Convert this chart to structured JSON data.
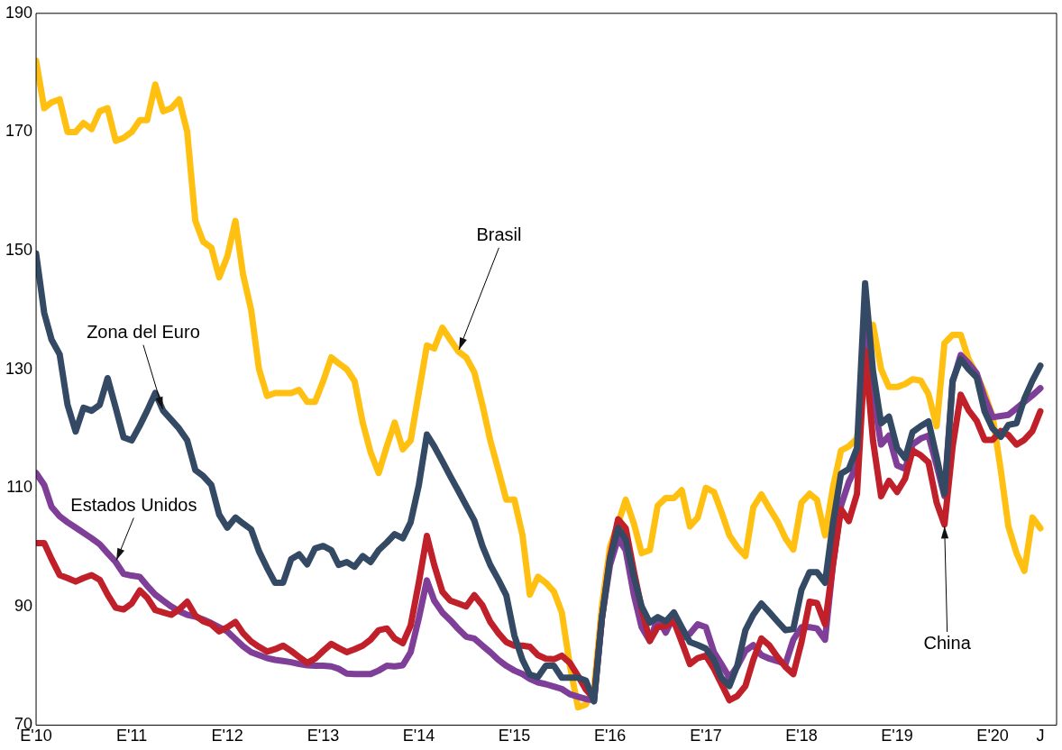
{
  "chart_data": {
    "type": "line",
    "x": [
      "2010-01",
      "2010-02",
      "2010-03",
      "2010-04",
      "2010-05",
      "2010-06",
      "2010-07",
      "2010-08",
      "2010-09",
      "2010-10",
      "2010-11",
      "2010-12",
      "2011-01",
      "2011-02",
      "2011-03",
      "2011-04",
      "2011-05",
      "2011-06",
      "2011-07",
      "2011-08",
      "2011-09",
      "2011-10",
      "2011-11",
      "2011-12",
      "2012-01",
      "2012-02",
      "2012-03",
      "2012-04",
      "2012-05",
      "2012-06",
      "2012-07",
      "2012-08",
      "2012-09",
      "2012-10",
      "2012-11",
      "2012-12",
      "2013-01",
      "2013-02",
      "2013-03",
      "2013-04",
      "2013-05",
      "2013-06",
      "2013-07",
      "2013-08",
      "2013-09",
      "2013-10",
      "2013-11",
      "2013-12",
      "2014-01",
      "2014-02",
      "2014-03",
      "2014-04",
      "2014-05",
      "2014-06",
      "2014-07",
      "2014-08",
      "2014-09",
      "2014-10",
      "2014-11",
      "2014-12",
      "2015-01",
      "2015-02",
      "2015-03",
      "2015-04",
      "2015-05",
      "2015-06",
      "2015-07",
      "2015-08",
      "2015-09",
      "2015-10",
      "2015-11",
      "2015-12",
      "2016-01",
      "2016-02",
      "2016-03",
      "2016-04",
      "2016-05",
      "2016-06",
      "2016-07",
      "2016-08",
      "2016-09",
      "2016-10",
      "2016-11",
      "2016-12",
      "2017-01",
      "2017-02",
      "2017-03",
      "2017-04",
      "2017-05",
      "2017-06",
      "2017-07",
      "2017-08",
      "2017-09",
      "2017-10",
      "2017-11",
      "2017-12",
      "2018-01",
      "2018-02",
      "2018-03",
      "2018-04",
      "2018-05",
      "2018-06",
      "2018-07",
      "2018-08",
      "2018-09",
      "2018-10",
      "2018-11",
      "2018-12",
      "2019-01",
      "2019-02",
      "2019-03",
      "2019-04",
      "2019-05",
      "2019-06",
      "2019-07",
      "2019-08",
      "2019-09",
      "2019-10",
      "2019-11",
      "2019-12",
      "2020-01",
      "2020-02",
      "2020-03",
      "2020-04",
      "2020-05",
      "2020-06",
      "2020-07"
    ],
    "series": [
      {
        "color": "#ffc012",
        "values": [
          182,
          174,
          175,
          175.5,
          170,
          170,
          171.5,
          170.5,
          173.5,
          174,
          168.5,
          169,
          170,
          172,
          172,
          178,
          173.5,
          174,
          175.5,
          170,
          155,
          151.5,
          150.5,
          145.5,
          149,
          155,
          146,
          140,
          130,
          125.5,
          126,
          126,
          126,
          126.5,
          124.5,
          124.5,
          128,
          132,
          131,
          130,
          128,
          121,
          116,
          112.5,
          117,
          121,
          116.5,
          118,
          126,
          134,
          133.5,
          137,
          135,
          133,
          132,
          129.5,
          124,
          118,
          113,
          108,
          108,
          102,
          92,
          95,
          94,
          92.5,
          89,
          80,
          73,
          73.5,
          76,
          90,
          100,
          104,
          108,
          104,
          99,
          99.5,
          107,
          108.3,
          108.3,
          109.6,
          103.5,
          105,
          110,
          109.3,
          106,
          102,
          100,
          98.5,
          106.7,
          108.9,
          106.5,
          104.4,
          101.5,
          99.6,
          107.5,
          109,
          108,
          102,
          110,
          116.3,
          117,
          118.3,
          null,
          137.5,
          130,
          127,
          127,
          127.5,
          128.3,
          128.1,
          125.8,
          120.4,
          134.4,
          135.8,
          135.8,
          131.7,
          129.1,
          126,
          122,
          113,
          103.5,
          99,
          96,
          105,
          103.2
        ]
      },
      {
        "color": "#7f3f98",
        "values": [
          112.5,
          110.5,
          106.8,
          105.2,
          104.2,
          103.3,
          102.4,
          101.5,
          100.5,
          99,
          97.5,
          95.5,
          95.2,
          95,
          93.5,
          92,
          91,
          90,
          89.2,
          88.6,
          88.3,
          87.8,
          87.2,
          86.5,
          85.8,
          84.5,
          83.3,
          82.3,
          81.8,
          81.3,
          81,
          80.8,
          80.6,
          80.3,
          80.1,
          80,
          80,
          79.9,
          79.5,
          78.7,
          78.6,
          78.6,
          78.6,
          79.2,
          80,
          79.9,
          80.1,
          82.3,
          88,
          94.4,
          91,
          89,
          87.7,
          86.2,
          84.9,
          84.6,
          83.4,
          82.3,
          81,
          80,
          79.2,
          78.6,
          77.8,
          77.2,
          76.9,
          76.5,
          76.1,
          75.2,
          74.8,
          74.4,
          74.2,
          88,
          97,
          101.5,
          99.5,
          92,
          86.5,
          84.2,
          88,
          85.6,
          88.4,
          84.6,
          85.4,
          87,
          86.5,
          82.3,
          80.3,
          78,
          79.9,
          82.5,
          83.5,
          81.8,
          81.2,
          80.8,
          80.3,
          84.4,
          86.5,
          86.5,
          86.3,
          84.4,
          97,
          107,
          111,
          113.8,
          137.2,
          126,
          117.3,
          118.8,
          113.8,
          113.2,
          117.3,
          118.3,
          118.8,
          113.8,
          108.6,
          127.8,
          132.4,
          131,
          129.3,
          125.2,
          121.9,
          122.1,
          122.3,
          123.4,
          124.5,
          125.6,
          126.8
        ]
      },
      {
        "color": "#c0202a",
        "values": [
          100.7,
          100.7,
          98,
          95.3,
          94.8,
          94.2,
          94.8,
          95.3,
          94.5,
          92,
          89.8,
          89.5,
          90.5,
          92.7,
          91.5,
          89.4,
          89,
          88.6,
          89.5,
          90.8,
          88.5,
          87.5,
          87,
          85.8,
          86.5,
          87.4,
          85.5,
          84.1,
          83.2,
          82.4,
          82.8,
          83.4,
          82.5,
          81.5,
          80.5,
          81.2,
          82.5,
          83.7,
          83,
          82.3,
          82.8,
          83.4,
          84.4,
          86,
          86.3,
          84.6,
          83.8,
          86.8,
          94,
          101.9,
          97,
          92.5,
          91,
          90.5,
          90,
          91.9,
          90.2,
          87.4,
          85.5,
          84,
          83.4,
          83.4,
          83.2,
          81.8,
          81.2,
          81.1,
          81.7,
          80.5,
          78.3,
          76,
          74.5,
          88,
          98.3,
          104.7,
          103.2,
          96,
          89.6,
          84.2,
          86.5,
          86.7,
          87.5,
          84,
          80.3,
          81.3,
          81.7,
          79.5,
          77,
          74.2,
          74.9,
          76.6,
          81,
          84.6,
          83.4,
          81.5,
          79.8,
          78.6,
          84,
          90.8,
          90.6,
          87,
          97,
          106.4,
          104.4,
          109,
          133.1,
          118,
          108.6,
          111.2,
          109.3,
          111.6,
          116.3,
          115.5,
          114.3,
          107.5,
          103.8,
          116.9,
          125.7,
          123.1,
          121.3,
          118.1,
          118.1,
          119.6,
          118.9,
          117.3,
          118.1,
          119.6,
          122.9
        ]
      },
      {
        "color": "#344a64",
        "values": [
          149.5,
          139.5,
          135,
          132.5,
          124,
          119.5,
          123.5,
          123,
          124,
          128.5,
          123.5,
          118.5,
          118,
          120.5,
          123,
          126,
          123,
          121.5,
          120,
          118,
          113,
          112,
          110.5,
          105.5,
          103.3,
          105,
          104,
          103,
          99.3,
          96.5,
          94,
          94,
          98,
          98.8,
          97.1,
          99.8,
          100.2,
          99.5,
          97,
          97.5,
          96.7,
          98.5,
          97.5,
          99.5,
          100.8,
          102.2,
          101.5,
          104.2,
          110.4,
          119,
          117,
          114.5,
          112,
          109.5,
          107,
          104.5,
          100.2,
          97,
          94.5,
          91.9,
          85.1,
          81,
          78.5,
          78.1,
          80,
          80,
          78,
          78,
          78,
          77.5,
          74,
          88,
          98,
          103.2,
          101.3,
          95,
          90,
          87.3,
          88.2,
          87.5,
          89,
          86.5,
          84,
          83.5,
          82.9,
          81,
          78,
          76.6,
          80,
          86,
          88.6,
          90.5,
          89,
          87.5,
          86,
          86.2,
          92.8,
          95.8,
          95.8,
          94,
          104,
          112.4,
          113.2,
          116.7,
          144.5,
          129.7,
          120.9,
          122,
          116.7,
          115,
          119.4,
          120.4,
          121.2,
          115.2,
          109,
          128.1,
          131.7,
          130,
          128.6,
          122.9,
          120,
          118.6,
          120.6,
          120.9,
          125,
          128.1,
          130.6
        ]
      }
    ],
    "xlim": [
      "2010-01",
      "2020-09"
    ],
    "xticks": [
      {
        "value": "2010-01",
        "label": "E'10"
      },
      {
        "value": "2011-01",
        "label": "E'11"
      },
      {
        "value": "2012-01",
        "label": "E'12"
      },
      {
        "value": "2013-01",
        "label": "E'13"
      },
      {
        "value": "2014-01",
        "label": "E'14"
      },
      {
        "value": "2015-01",
        "label": "E'15"
      },
      {
        "value": "2016-01",
        "label": "E'16"
      },
      {
        "value": "2017-01",
        "label": "E'17"
      },
      {
        "value": "2018-01",
        "label": "E'18"
      },
      {
        "value": "2019-01",
        "label": "E'19"
      },
      {
        "value": "2020-01",
        "label": "E'20"
      },
      {
        "value": "2020-07",
        "label": "J"
      }
    ],
    "ylim": [
      70,
      190
    ],
    "yticks": [
      70,
      90,
      110,
      130,
      150,
      170,
      190
    ],
    "annotations": [
      {
        "text": "Brasil",
        "x": "2014-06",
        "y": 133
      },
      {
        "text": "Zona del Euro",
        "x": "2011-05",
        "y": 123
      },
      {
        "text": "Estados Unidos",
        "x": "2010-11",
        "y": 97.5
      },
      {
        "text": "China",
        "x": "2019-07",
        "y": 103.8
      }
    ]
  }
}
